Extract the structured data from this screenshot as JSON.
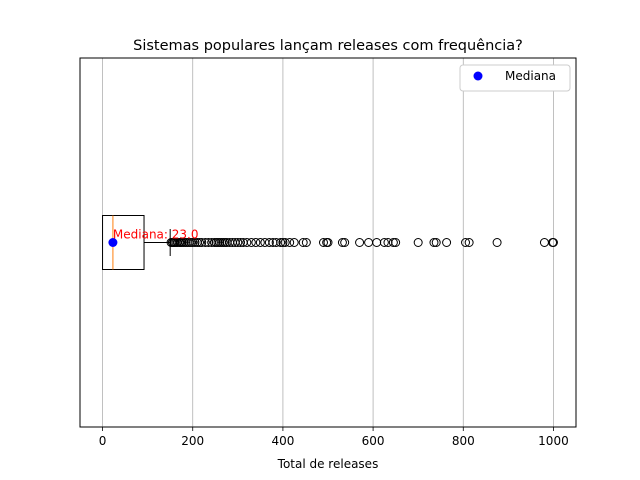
{
  "chart_data": {
    "type": "boxplot",
    "orientation": "horizontal",
    "title": "Sistemas populares lançam releases com frequência?",
    "xlabel": "Total de releases",
    "ylabel": "",
    "xlim": [
      -50,
      1050
    ],
    "xticks": [
      0,
      200,
      400,
      600,
      800,
      1000
    ],
    "grid": "x",
    "box": {
      "whisker_low": 0,
      "q1": 0,
      "median": 23.0,
      "q3": 92,
      "whisker_high": 150
    },
    "outliers": [
      152,
      155,
      158,
      160,
      163,
      166,
      170,
      173,
      176,
      180,
      184,
      188,
      192,
      196,
      200,
      205,
      210,
      215,
      220,
      228,
      235,
      242,
      248,
      252,
      256,
      260,
      264,
      268,
      272,
      276,
      282,
      288,
      294,
      300,
      306,
      312,
      320,
      330,
      340,
      350,
      360,
      370,
      378,
      385,
      395,
      400,
      405,
      415,
      425,
      445,
      452,
      490,
      497,
      500,
      532,
      537,
      570,
      590,
      608,
      625,
      633,
      645,
      650,
      700,
      735,
      740,
      763,
      805,
      813,
      875,
      980,
      998,
      1000
    ],
    "median_point": {
      "label": "Mediana",
      "value": 23.0,
      "color": "#0000ff"
    },
    "median_annotation": {
      "text": "Mediana: 23.0",
      "color": "#ff0000"
    },
    "legend": {
      "placement": "top-right",
      "entries": [
        "Mediana"
      ]
    },
    "colors": {
      "median_line": "#ff7f0e",
      "outlier_edge": "#000000",
      "grid": "#b0b0b0"
    }
  }
}
